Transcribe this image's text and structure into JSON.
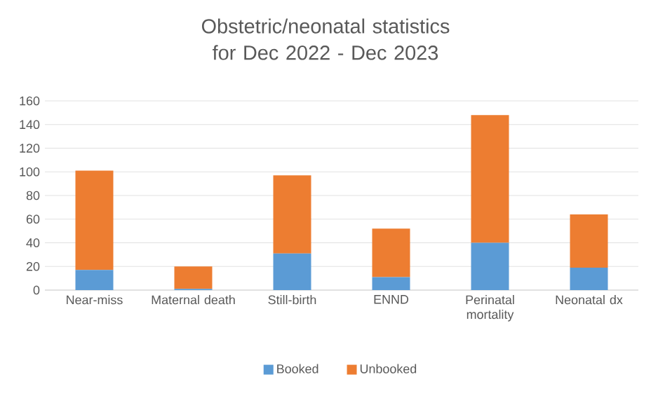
{
  "chart_data": {
    "type": "bar",
    "title": "Obstetric/neonatal statistics for Dec 2022 - Dec 2023",
    "categories": [
      "Near-miss",
      "Maternal death",
      "Still-birth",
      "ENND",
      "Perinatal mortality",
      "Neonatal dx"
    ],
    "series": [
      {
        "name": "Booked",
        "color": "#5b9bd5",
        "values": [
          17,
          1,
          31,
          11,
          40,
          19
        ]
      },
      {
        "name": "Unbooked",
        "color": "#ed7d31",
        "values": [
          84,
          19,
          66,
          41,
          108,
          45
        ]
      }
    ],
    "stacked": true,
    "ylim": [
      0,
      160
    ],
    "yticks": [
      0,
      20,
      40,
      60,
      80,
      100,
      120,
      140,
      160
    ],
    "grid": "y",
    "legend": "bottom"
  }
}
